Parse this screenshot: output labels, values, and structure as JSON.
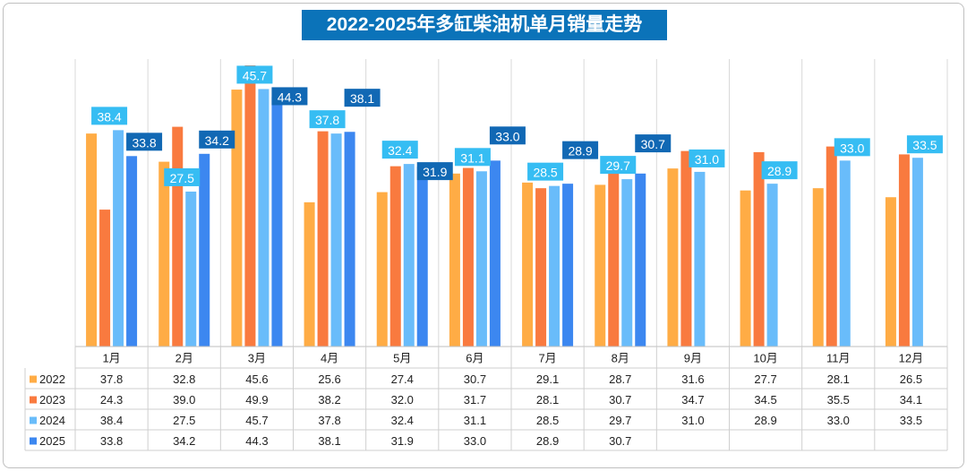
{
  "title": "2022-2025年多缸柴油机单月销量走势",
  "chart_data": {
    "type": "bar",
    "title": "2022-2025年多缸柴油机单月销量走势",
    "categories": [
      "1月",
      "2月",
      "3月",
      "4月",
      "5月",
      "6月",
      "7月",
      "8月",
      "9月",
      "10月",
      "11月",
      "12月"
    ],
    "ylim": [
      0,
      52
    ],
    "grid": true,
    "legend": "data-table-left",
    "series": [
      {
        "name": "2022",
        "color": "#ffac45",
        "values": [
          37.8,
          32.8,
          45.6,
          25.6,
          27.4,
          30.7,
          29.1,
          28.7,
          31.6,
          27.7,
          28.1,
          26.5
        ],
        "labeled": false
      },
      {
        "name": "2023",
        "color": "#f97a3f",
        "values": [
          24.3,
          39.0,
          49.9,
          38.2,
          32.0,
          31.7,
          28.1,
          30.7,
          34.7,
          34.5,
          35.5,
          34.1
        ],
        "labeled": false
      },
      {
        "name": "2024",
        "color": "#69bcfa",
        "values": [
          38.4,
          27.5,
          45.7,
          37.8,
          32.4,
          31.1,
          28.5,
          29.7,
          31.0,
          28.9,
          33.0,
          33.5
        ],
        "labeled": true,
        "label_bg": "#36bdf3",
        "label_fg": "#ffffff"
      },
      {
        "name": "2025",
        "color": "#3c87f0",
        "values": [
          33.8,
          34.2,
          44.3,
          38.1,
          31.9,
          33.0,
          28.9,
          30.7,
          null,
          null,
          null,
          null
        ],
        "labeled": true,
        "label_bg": "#1168b4",
        "label_fg": "#ffffff"
      }
    ],
    "table": {
      "rows": [
        {
          "name": "2022",
          "cells": [
            "37.8",
            "32.8",
            "45.6",
            "25.6",
            "27.4",
            "30.7",
            "29.1",
            "28.7",
            "31.6",
            "27.7",
            "28.1",
            "26.5"
          ]
        },
        {
          "name": "2023",
          "cells": [
            "24.3",
            "39.0",
            "49.9",
            "38.2",
            "32.0",
            "31.7",
            "28.1",
            "30.7",
            "34.7",
            "34.5",
            "35.5",
            "34.1"
          ]
        },
        {
          "name": "2024",
          "cells": [
            "38.4",
            "27.5",
            "45.7",
            "37.8",
            "32.4",
            "31.1",
            "28.5",
            "29.7",
            "31.0",
            "28.9",
            "33.0",
            "33.5"
          ]
        },
        {
          "name": "2025",
          "cells": [
            "33.8",
            "34.2",
            "44.3",
            "38.1",
            "31.9",
            "33.0",
            "28.9",
            "30.7",
            "",
            "",
            "",
            ""
          ]
        }
      ]
    }
  }
}
